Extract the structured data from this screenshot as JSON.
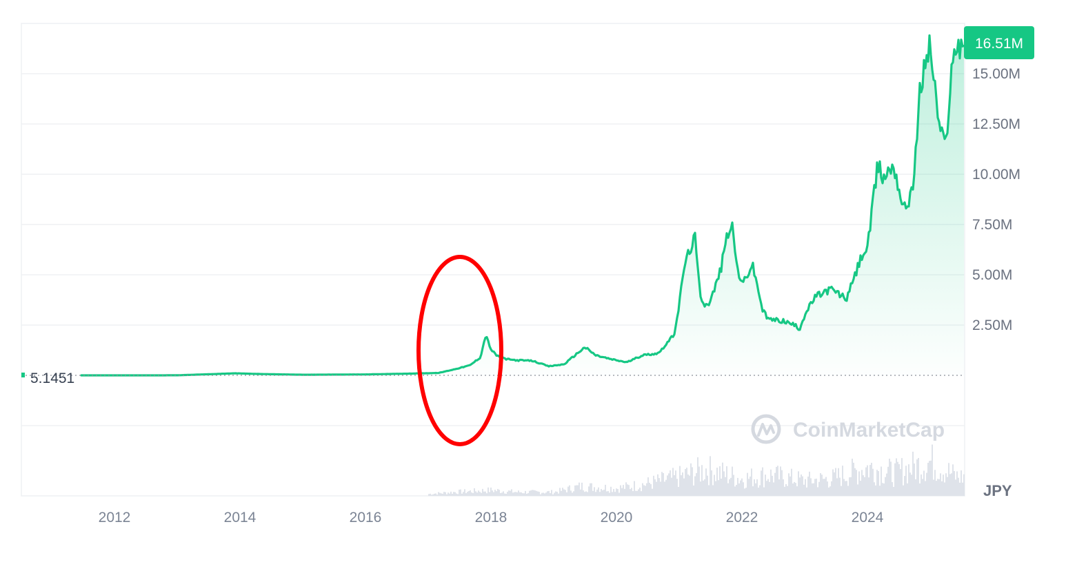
{
  "colors": {
    "line": "#16c784",
    "badge": "#16c784",
    "annotation": "#ff0000",
    "volume": "#dfe3ea",
    "grid": "#eff1f4"
  },
  "watermark": {
    "text": "CoinMarketCap",
    "icon": "coinmarketcap-logo-icon"
  },
  "current_price_label": "16.51M",
  "start_value_label": "5.1451",
  "currency_label": "JPY",
  "chart_data": {
    "type": "area",
    "title": "",
    "xlabel": "",
    "ylabel": "",
    "unit": "JPY",
    "x_tick_labels": [
      "2012",
      "2014",
      "2016",
      "2018",
      "2020",
      "2022",
      "2024"
    ],
    "y_tick_labels": [
      "2.50M",
      "5.00M",
      "7.50M",
      "10.00M",
      "12.50M",
      "15.00M"
    ],
    "y_ticks": [
      2500000,
      5000000,
      7500000,
      10000000,
      12500000,
      15000000
    ],
    "ylim": [
      -2500000,
      17500000
    ],
    "grid": true,
    "baseline_value": 5.1451,
    "series": [
      {
        "x": [
          "2011-06",
          "2012-01",
          "2013-01",
          "2013-12",
          "2014-06",
          "2015-01",
          "2016-01",
          "2016-12",
          "2017-03",
          "2017-06",
          "2017-09",
          "2017-11",
          "2017-12",
          "2018-01",
          "2018-02",
          "2018-04",
          "2018-06",
          "2018-09",
          "2018-12",
          "2019-03",
          "2019-06",
          "2019-07",
          "2019-09",
          "2019-12",
          "2020-03",
          "2020-06",
          "2020-09",
          "2020-12",
          "2021-01",
          "2021-02",
          "2021-04",
          "2021-05",
          "2021-06",
          "2021-07",
          "2021-09",
          "2021-10",
          "2021-11",
          "2021-12",
          "2022-01",
          "2022-03",
          "2022-04",
          "2022-05",
          "2022-06",
          "2022-09",
          "2022-11",
          "2022-12",
          "2023-01",
          "2023-03",
          "2023-06",
          "2023-09",
          "2023-10",
          "2023-12",
          "2024-01",
          "2024-03",
          "2024-04",
          "2024-06",
          "2024-08",
          "2024-09",
          "2024-10",
          "2024-11",
          "2024-12",
          "2025-01",
          "2025-02",
          "2025-03",
          "2025-04",
          "2025-05",
          "2025-06"
        ],
        "values": [
          5,
          30,
          2000,
          100000,
          60000,
          30000,
          45000,
          100000,
          120000,
          300000,
          500000,
          900000,
          2000000,
          1300000,
          1000000,
          800000,
          750000,
          720000,
          450000,
          550000,
          1200000,
          1400000,
          1000000,
          800000,
          650000,
          1000000,
          1100000,
          2000000,
          3500000,
          5500000,
          6900000,
          4000000,
          3500000,
          3700000,
          5300000,
          6800000,
          7600000,
          5500000,
          4500000,
          5500000,
          4400000,
          3200000,
          2800000,
          2700000,
          2500000,
          2300000,
          3000000,
          3900000,
          4300000,
          3800000,
          4500000,
          6000000,
          6300000,
          10500000,
          9800000,
          10500000,
          8200000,
          8800000,
          10000000,
          14000000,
          15500000,
          16500000,
          14000000,
          12000000,
          11500000,
          15000000,
          16500000
        ]
      }
    ],
    "volume": {
      "note": "relative",
      "x": [
        "2017-01",
        "2017-06",
        "2018-01",
        "2018-06",
        "2019-01",
        "2019-06",
        "2020-01",
        "2020-06",
        "2021-01",
        "2021-06",
        "2022-01",
        "2022-06",
        "2023-01",
        "2023-06",
        "2024-01",
        "2024-06",
        "2025-01",
        "2025-06"
      ],
      "values": [
        1,
        2,
        3,
        2,
        2,
        5,
        4,
        6,
        10,
        14,
        9,
        11,
        8,
        9,
        15,
        12,
        18,
        10
      ]
    }
  }
}
